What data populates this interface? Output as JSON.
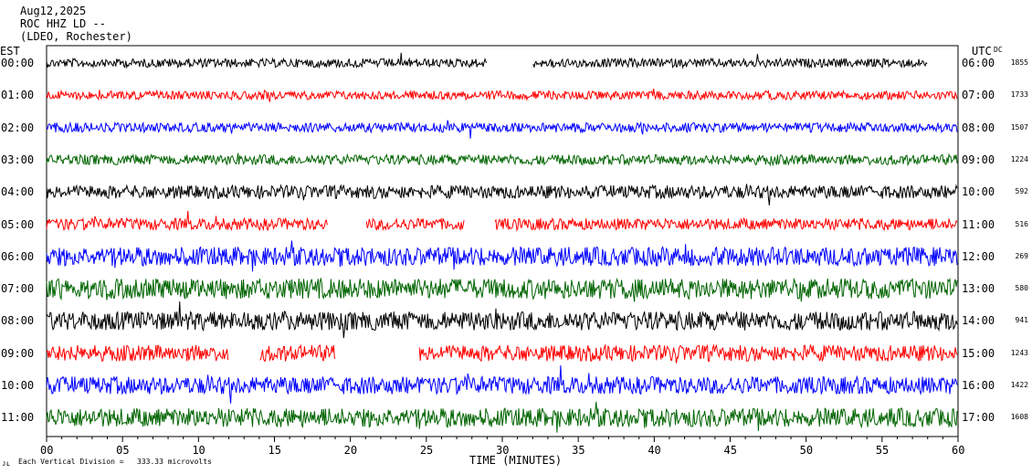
{
  "header": {
    "date": "Aug12,2025",
    "station": "ROC HHZ LD --",
    "network": "(LDEO, Rochester)"
  },
  "left_axis_label": "EST",
  "right_axis_label": "UTC",
  "dc_label": "DC",
  "footer": {
    "mark": "ᴊʟ",
    "scale_text": "Each Vertical Division =",
    "scale_value": "333.33 microvolts"
  },
  "colors": {
    "black": "#000000",
    "red": "#ff0000",
    "blue": "#0000ff",
    "green": "#006400",
    "frame": "#000000"
  },
  "chart_data": {
    "type": "line",
    "title": "",
    "xlabel": "TIME (MINUTES)",
    "ylabel": "",
    "xlim": [
      0,
      60
    ],
    "x_ticks": [
      "00",
      "05",
      "10",
      "15",
      "20",
      "25",
      "30",
      "35",
      "40",
      "45",
      "50",
      "55",
      "60"
    ],
    "rows": [
      {
        "est": "00:00",
        "utc": "06:00",
        "dc": "1855",
        "color": "black",
        "amplitude": 0.6,
        "gaps": [
          [
            29,
            32
          ],
          [
            58,
            60
          ]
        ]
      },
      {
        "est": "01:00",
        "utc": "07:00",
        "dc": "1733",
        "color": "red",
        "amplitude": 0.6,
        "gaps": []
      },
      {
        "est": "02:00",
        "utc": "08:00",
        "dc": "1507",
        "color": "blue",
        "amplitude": 0.65,
        "gaps": []
      },
      {
        "est": "03:00",
        "utc": "09:00",
        "dc": "1224",
        "color": "green",
        "amplitude": 0.7,
        "gaps": []
      },
      {
        "est": "04:00",
        "utc": "10:00",
        "dc": "592",
        "color": "black",
        "amplitude": 0.9,
        "gaps": []
      },
      {
        "est": "05:00",
        "utc": "11:00",
        "dc": "516",
        "color": "red",
        "amplitude": 0.8,
        "gaps": [
          [
            18.5,
            21
          ],
          [
            27.5,
            29.5
          ]
        ]
      },
      {
        "est": "06:00",
        "utc": "12:00",
        "dc": "269",
        "color": "blue",
        "amplitude": 1.3,
        "gaps": []
      },
      {
        "est": "07:00",
        "utc": "13:00",
        "dc": "580",
        "color": "green",
        "amplitude": 1.4,
        "gaps": []
      },
      {
        "est": "08:00",
        "utc": "14:00",
        "dc": "941",
        "color": "black",
        "amplitude": 1.3,
        "gaps": []
      },
      {
        "est": "09:00",
        "utc": "15:00",
        "dc": "1243",
        "color": "red",
        "amplitude": 1.1,
        "gaps": [
          [
            12,
            14
          ],
          [
            19,
            24.5
          ]
        ]
      },
      {
        "est": "10:00",
        "utc": "16:00",
        "dc": "1422",
        "color": "blue",
        "amplitude": 1.2,
        "gaps": []
      },
      {
        "est": "11:00",
        "utc": "17:00",
        "dc": "1608",
        "color": "green",
        "amplitude": 1.3,
        "gaps": []
      }
    ]
  }
}
